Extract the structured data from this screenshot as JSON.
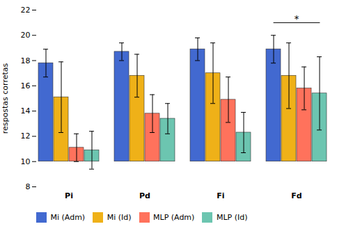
{
  "chart_data": {
    "type": "bar",
    "categories": [
      "Pi",
      "Pd",
      "Fi",
      "Fd"
    ],
    "series": [
      {
        "name": "Mi (Adm)",
        "values": [
          17.8,
          18.7,
          18.9,
          18.9
        ],
        "errors": [
          1.1,
          0.7,
          0.9,
          1.1
        ]
      },
      {
        "name": "Mi (Id)",
        "values": [
          15.1,
          16.8,
          17.0,
          16.8
        ],
        "errors": [
          2.8,
          1.7,
          2.4,
          2.6
        ]
      },
      {
        "name": "MLP (Adm)",
        "values": [
          11.1,
          13.8,
          14.9,
          15.8
        ],
        "errors": [
          1.1,
          1.5,
          1.8,
          1.7
        ]
      },
      {
        "name": "MLP (Id)",
        "values": [
          10.9,
          13.4,
          12.3,
          15.4
        ],
        "errors": [
          1.5,
          1.2,
          1.6,
          2.9
        ]
      }
    ],
    "baseline": 10,
    "ylabel": "respostas corretas",
    "ylim": [
      8,
      22
    ],
    "yticks": [
      8,
      10,
      12,
      14,
      16,
      18,
      20,
      22
    ],
    "annotations": [
      {
        "text": "*",
        "category": "Fd",
        "from": "Mi (Adm)",
        "to": "MLP (Id)",
        "y": 21
      }
    ],
    "legend": "bottom",
    "grid": false
  }
}
